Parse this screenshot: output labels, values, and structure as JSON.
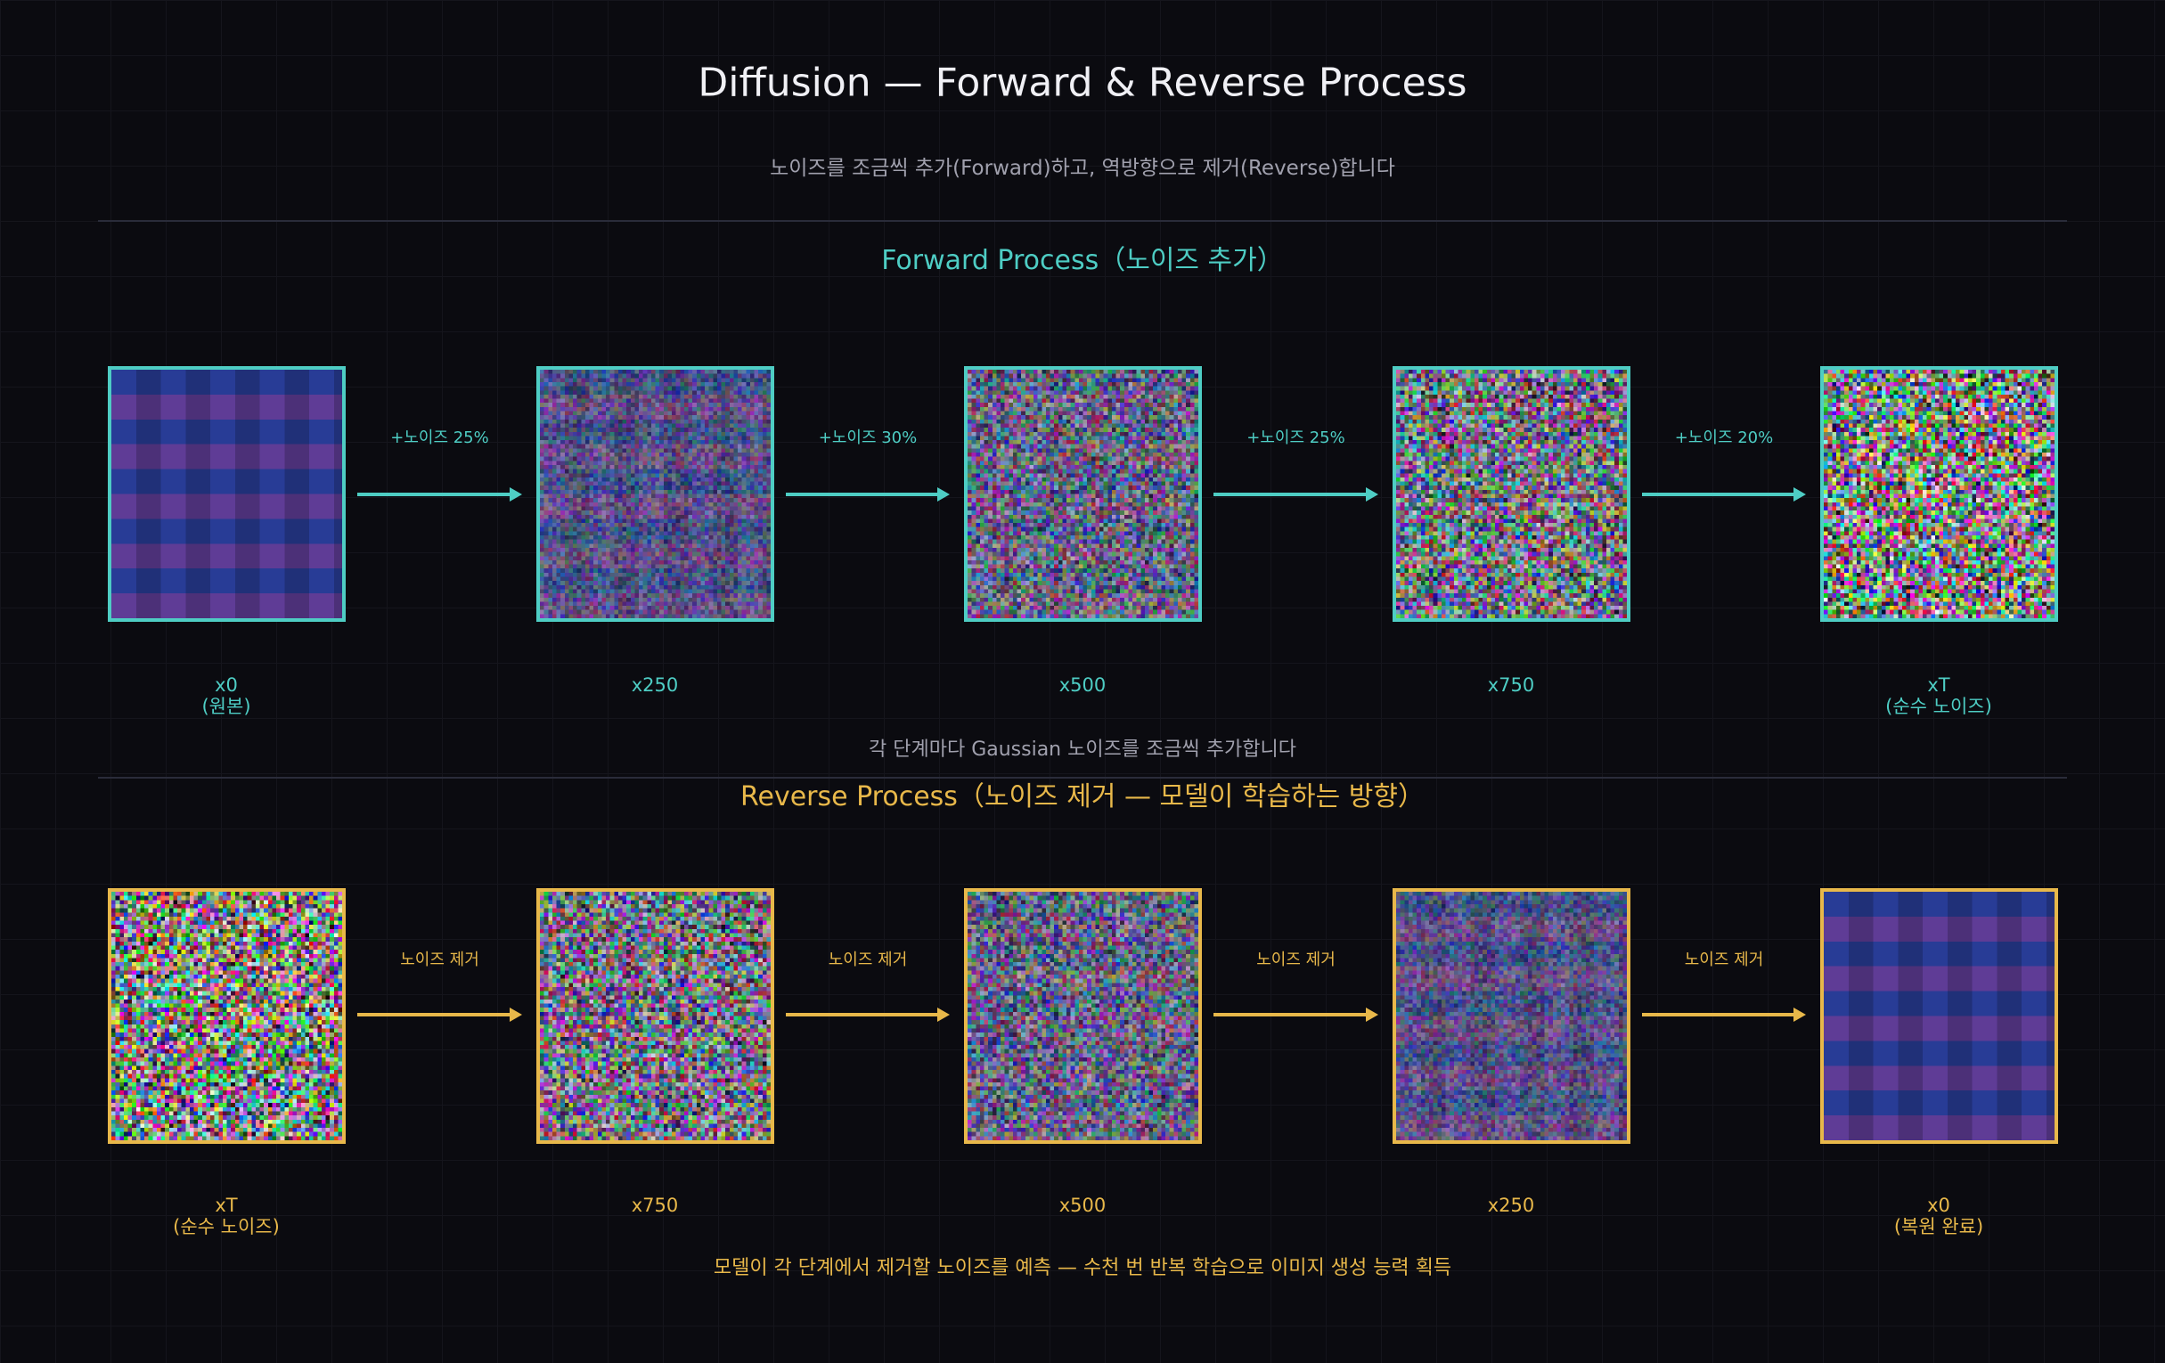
{
  "header": {
    "title": "Diffusion — Forward & Reverse Process",
    "subtitle": "노이즈를 조금씩 추가(Forward)하고, 역방향으로 제거(Reverse)합니다"
  },
  "forward": {
    "title": "Forward Process（노이즈 추가）",
    "stages": [
      {
        "label": "x0",
        "sublabel": "(원본)"
      },
      {
        "label": "x250"
      },
      {
        "label": "x500"
      },
      {
        "label": "x750"
      },
      {
        "label": "xT",
        "sublabel": "(순수 노이즈)"
      }
    ],
    "steps": [
      "+노이즈 25%",
      "+노이즈 30%",
      "+노이즈 25%",
      "+노이즈 20%"
    ],
    "caption": "각 단계마다 Gaussian 노이즈를 조금씩 추가합니다"
  },
  "reverse": {
    "title": "Reverse Process（노이즈 제거 — 모델이 학습하는 방향）",
    "stages": [
      {
        "label": "xT",
        "sublabel": "(순수 노이즈)"
      },
      {
        "label": "x750"
      },
      {
        "label": "x500"
      },
      {
        "label": "x250"
      },
      {
        "label": "x0",
        "sublabel": "(복원 완료)"
      }
    ],
    "steps": [
      "노이즈 제거",
      "노이즈 제거",
      "노이즈 제거",
      "노이즈 제거"
    ],
    "caption": "모델이 각 단계에서 제거할 노이즈를 예측 — 수천 번 반복 학습으로 이미지 생성 능력 획득"
  }
}
